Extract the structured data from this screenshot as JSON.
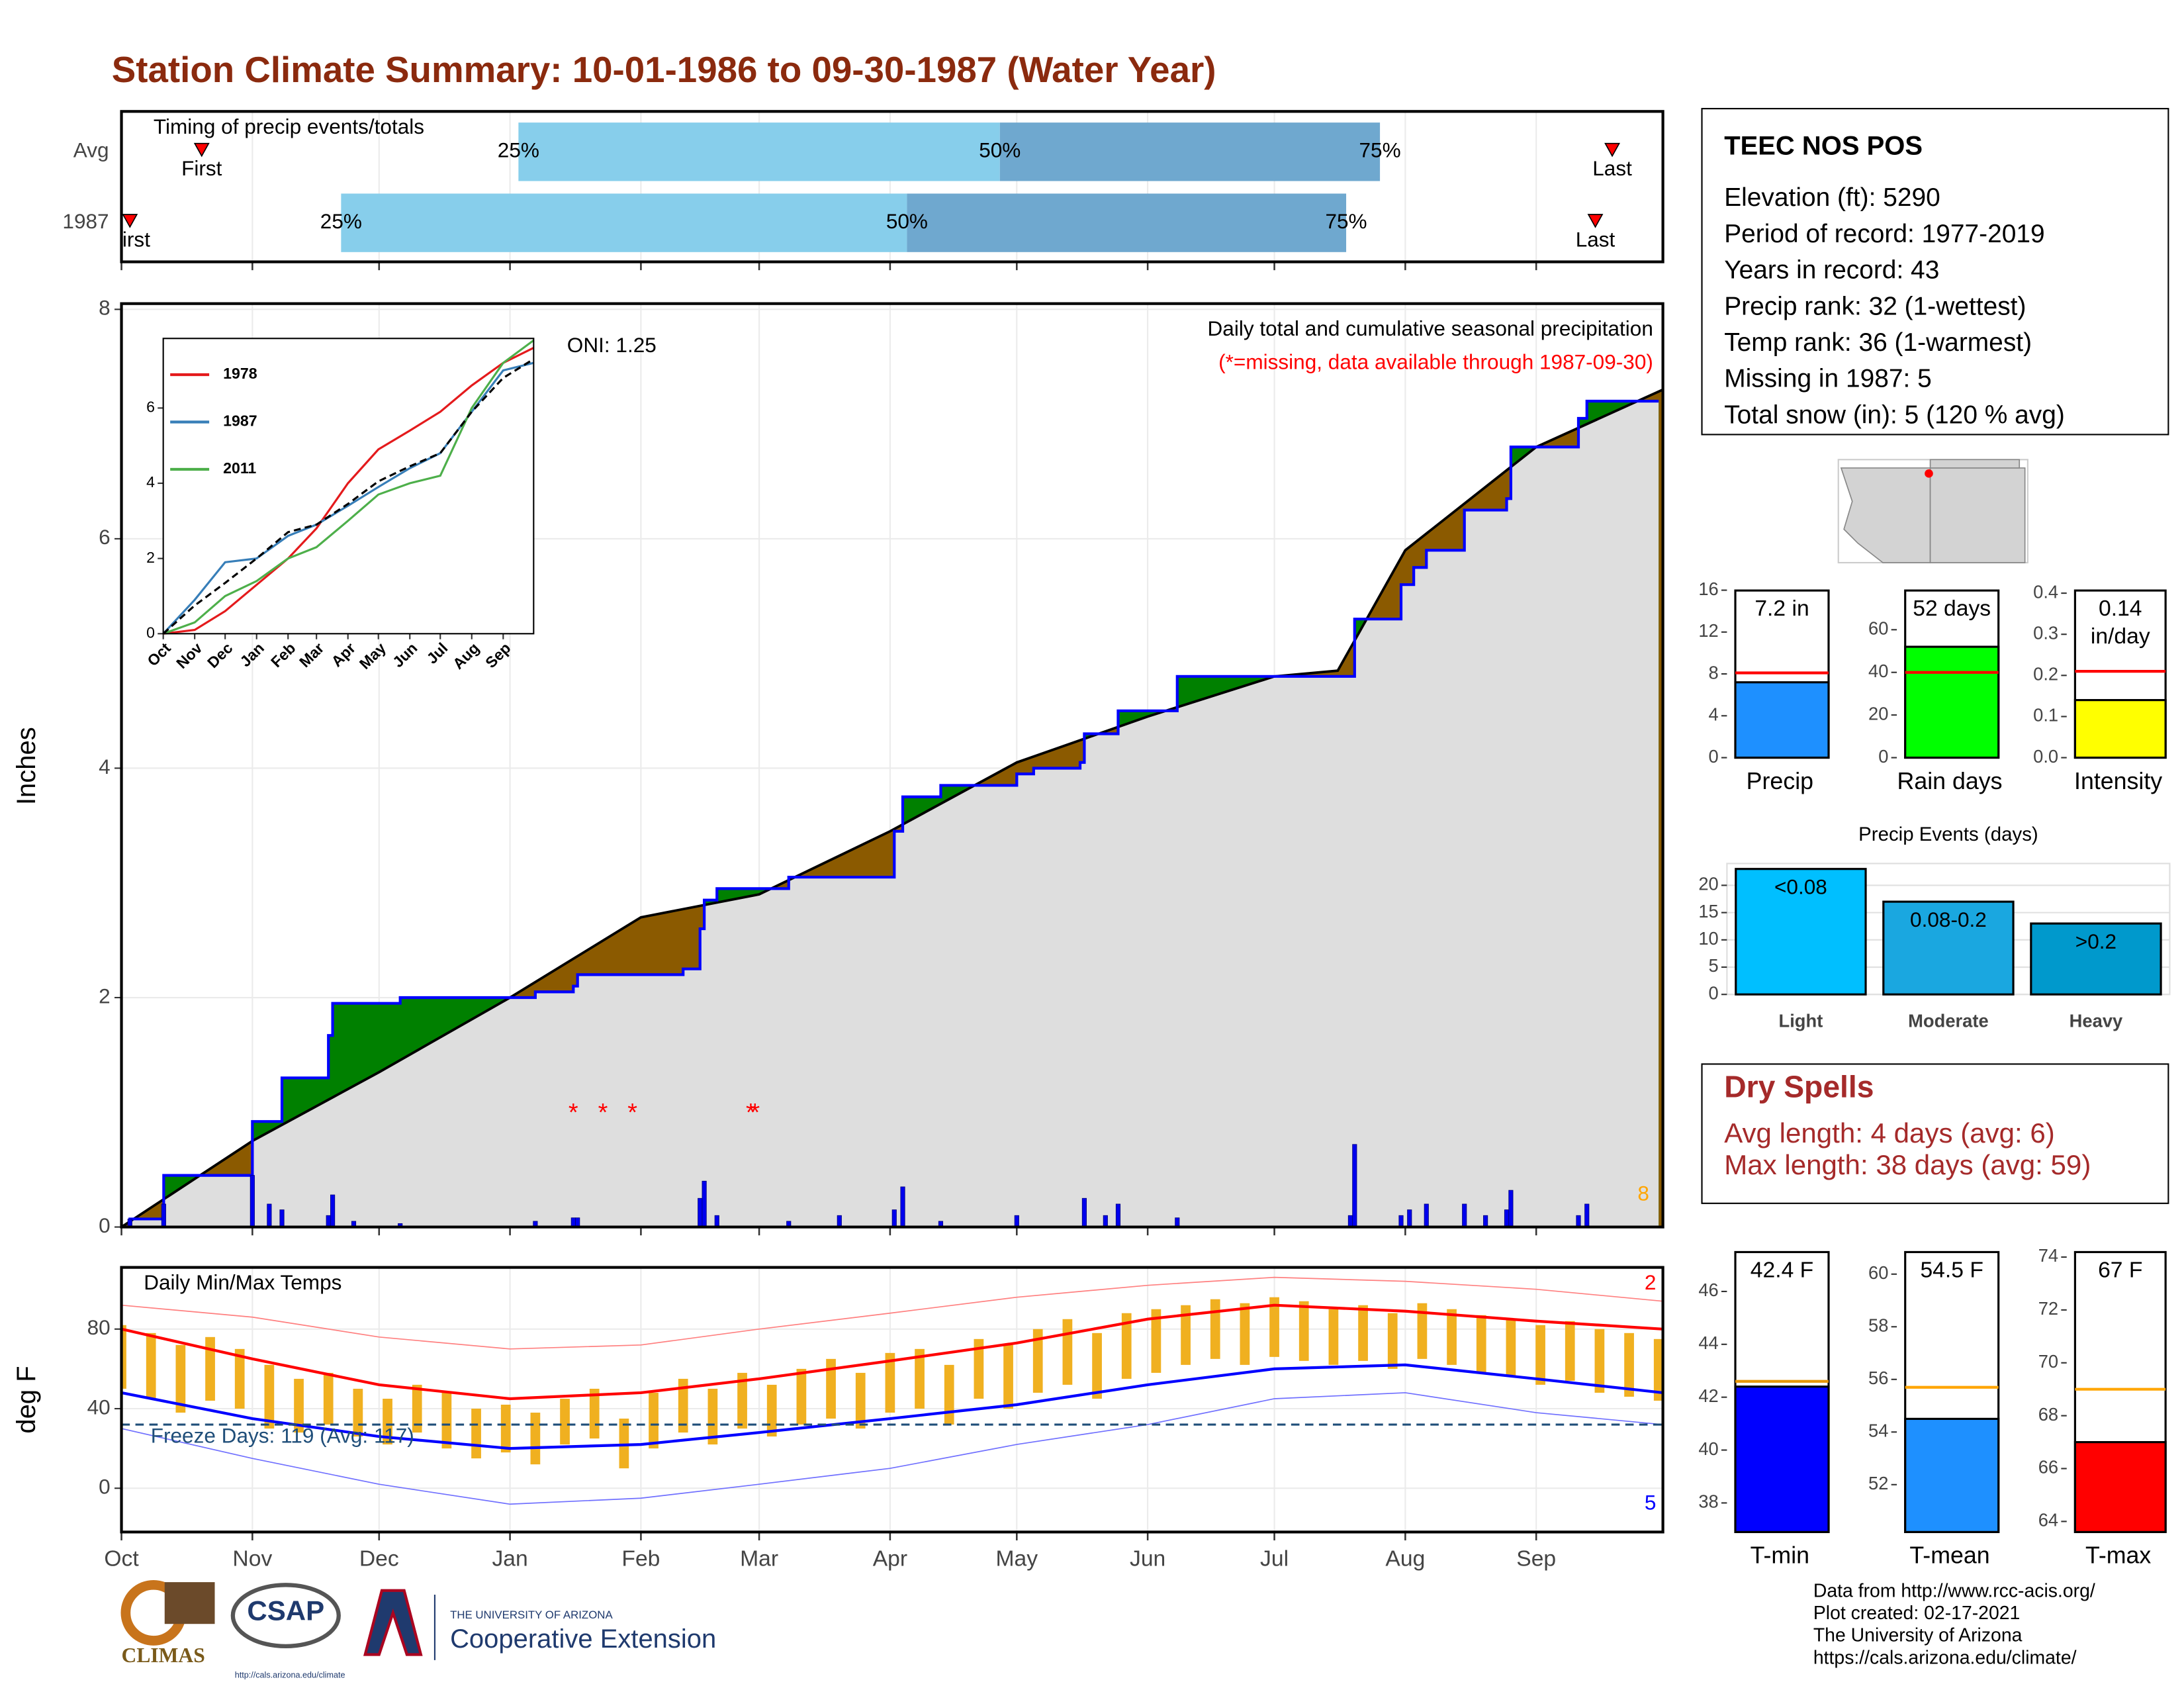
{
  "title": "Station Climate Summary: 10-01-1986 to 09-30-1987 (Water Year)",
  "station": {
    "name": "TEEC NOS POS",
    "lines": [
      "Elevation (ft): 5290",
      "Period of record: 1977-2019",
      "Years in record: 43",
      "Precip rank: 32 (1-wettest)",
      "Temp rank: 36 (1-warmest)",
      "Missing in 1987: 5",
      "Total snow (in): 5 (120 % avg)"
    ]
  },
  "dry_spells": {
    "title": "Dry Spells",
    "lines": [
      "Avg length: 4 days (avg: 6)",
      "Max length: 38 days (avg: 59)"
    ]
  },
  "footer": {
    "logos": [
      "CLIMAS",
      "CSAP",
      "http://cals.arizona.edu/climate"
    ],
    "university": "THE UNIVERSITY OF ARIZONA",
    "extension": "Cooperative Extension",
    "credits": [
      "Data from http://www.rcc-acis.org/",
      "Plot created: 02-17-2021",
      "The University of Arizona",
      "https://cals.arizona.edu/climate/"
    ]
  },
  "chart_data": [
    {
      "type": "timeline",
      "title": "Timing of precip events/totals",
      "marker_labels": [
        "First",
        "25%",
        "50%",
        "75%",
        "Last"
      ],
      "rows": [
        {
          "name": "Avg",
          "first": 19,
          "p25": 94,
          "p50": 208,
          "p75": 298,
          "last": 353
        },
        {
          "name": "1987",
          "first": 2,
          "p25": 52,
          "p50": 186,
          "p75": 290,
          "last": 349
        }
      ],
      "colors": [
        "#87ceeb",
        "#6fa8cf"
      ],
      "marker_color": "#ff0000"
    },
    {
      "type": "area",
      "ylabel": "Inches",
      "xlim": [
        0,
        365
      ],
      "xticks": [
        {
          "value": 0,
          "label": "Oct"
        },
        {
          "value": 31,
          "label": "Nov"
        },
        {
          "value": 61,
          "label": "Dec"
        },
        {
          "value": 92,
          "label": "Jan"
        },
        {
          "value": 123,
          "label": "Feb"
        },
        {
          "value": 151,
          "label": "Mar"
        },
        {
          "value": 182,
          "label": "Apr"
        },
        {
          "value": 212,
          "label": "May"
        },
        {
          "value": 243,
          "label": "Jun"
        },
        {
          "value": 273,
          "label": "Jul"
        },
        {
          "value": 304,
          "label": "Aug"
        },
        {
          "value": 335,
          "label": "Sep"
        }
      ],
      "ylim": [
        0,
        8.05
      ],
      "yticks": [
        0,
        2,
        4,
        6,
        8
      ],
      "grid": true,
      "annotations": {
        "oni": "ONI: 1.25",
        "description": "Daily total and cumulative seasonal precipitation",
        "missing_note": "(*=missing, data available through 1987-09-30)"
      },
      "marker_count": 8,
      "cumulative": {
        "x": [
          0,
          2,
          10,
          31,
          38,
          49,
          50,
          66,
          98,
          107,
          108,
          133,
          137,
          138,
          141,
          158,
          183,
          185,
          194,
          212,
          216,
          227,
          228,
          236,
          250,
          291,
          292,
          303,
          306,
          309,
          318,
          328,
          329,
          345,
          347,
          364
        ],
        "values": [
          0,
          0.07,
          0.45,
          0.92,
          1.3,
          1.67,
          1.95,
          2.0,
          2.05,
          2.1,
          2.2,
          2.25,
          2.6,
          2.85,
          2.95,
          3.05,
          3.45,
          3.75,
          3.85,
          3.95,
          4.0,
          4.05,
          4.3,
          4.5,
          4.8,
          4.8,
          5.3,
          5.6,
          5.75,
          5.9,
          6.25,
          6.35,
          6.8,
          7.05,
          7.2,
          7.2
        ],
        "color": "#0000ff"
      },
      "average": {
        "x": [
          0,
          31,
          61,
          92,
          123,
          151,
          182,
          212,
          243,
          273,
          288,
          304,
          335,
          365
        ],
        "values": [
          0,
          0.75,
          1.35,
          2.0,
          2.7,
          2.9,
          3.45,
          4.05,
          4.45,
          4.8,
          4.85,
          5.9,
          6.8,
          7.3
        ],
        "color": "#000000"
      },
      "daily": {
        "x": [
          2,
          10,
          31,
          35,
          38,
          49,
          50,
          55,
          66,
          98,
          107,
          108,
          137,
          138,
          141,
          158,
          170,
          183,
          185,
          194,
          212,
          228,
          233,
          236,
          250,
          291,
          292,
          303,
          305,
          309,
          318,
          323,
          328,
          329,
          345,
          347
        ],
        "values": [
          0.07,
          0.2,
          0.45,
          0.2,
          0.15,
          0.1,
          0.28,
          0.05,
          0.03,
          0.05,
          0.08,
          0.08,
          0.25,
          0.4,
          0.1,
          0.05,
          0.1,
          0.15,
          0.35,
          0.05,
          0.1,
          0.25,
          0.1,
          0.2,
          0.08,
          0.1,
          0.72,
          0.1,
          0.15,
          0.2,
          0.2,
          0.1,
          0.15,
          0.32,
          0.1,
          0.2
        ],
        "color": "#0000ee"
      },
      "missing": {
        "x": [
          107,
          114,
          121,
          149,
          150
        ],
        "symbol": "*",
        "color": "#ff0000"
      },
      "above_color": "#008000",
      "below_color": "#8b5a00",
      "base_color": "#dedede"
    },
    {
      "type": "line",
      "xlim": [
        0,
        365
      ],
      "xticks": [
        {
          "value": 0,
          "label": "Oct"
        },
        {
          "value": 31,
          "label": "Nov"
        },
        {
          "value": 61,
          "label": "Dec"
        },
        {
          "value": 92,
          "label": "Jan"
        },
        {
          "value": 123,
          "label": "Feb"
        },
        {
          "value": 151,
          "label": "Mar"
        },
        {
          "value": 182,
          "label": "Apr"
        },
        {
          "value": 212,
          "label": "May"
        },
        {
          "value": 243,
          "label": "Jun"
        },
        {
          "value": 273,
          "label": "Jul"
        },
        {
          "value": 304,
          "label": "Aug"
        },
        {
          "value": 335,
          "label": "Sep"
        }
      ],
      "ylim": [
        0,
        7.85
      ],
      "yticks": [
        0,
        2,
        4,
        6
      ],
      "x": [
        0,
        31,
        61,
        92,
        123,
        151,
        182,
        212,
        243,
        273,
        304,
        335,
        365
      ],
      "series": [
        {
          "name": "1978",
          "color": "#e41a1c",
          "values": [
            0,
            0.1,
            0.6,
            1.3,
            2.0,
            2.8,
            4.0,
            4.9,
            5.4,
            5.9,
            6.6,
            7.2,
            7.6
          ]
        },
        {
          "name": "1987",
          "color": "#377eb8",
          "values": [
            0,
            0.9,
            1.9,
            2.0,
            2.6,
            2.9,
            3.4,
            3.9,
            4.4,
            4.8,
            5.9,
            7.0,
            7.2
          ]
        },
        {
          "name": "2011",
          "color": "#4daf4a",
          "values": [
            0,
            0.3,
            1.0,
            1.4,
            2.0,
            2.3,
            3.0,
            3.7,
            4.0,
            4.2,
            6.0,
            7.2,
            7.8
          ]
        }
      ],
      "average": {
        "values": [
          0,
          0.75,
          1.35,
          2.0,
          2.7,
          2.9,
          3.45,
          4.05,
          4.45,
          4.8,
          5.9,
          6.8,
          7.3
        ],
        "color": "#000000"
      }
    },
    {
      "type": "range",
      "title": "Daily Min/Max Temps",
      "ylabel": "deg F",
      "ylim": [
        -22,
        111
      ],
      "yticks": [
        0,
        40,
        80
      ],
      "freeze_line": 32,
      "freeze_label": "Freeze Days: 119 (Avg: 117)",
      "freeze_color": "#1f4e79",
      "high_count": 2,
      "low_count": 5,
      "daily": {
        "x": [
          0,
          7,
          14,
          21,
          28,
          35,
          42,
          49,
          56,
          63,
          70,
          77,
          84,
          91,
          98,
          105,
          112,
          119,
          126,
          133,
          140,
          147,
          154,
          161,
          168,
          175,
          182,
          189,
          196,
          203,
          210,
          217,
          224,
          231,
          238,
          245,
          252,
          259,
          266,
          273,
          280,
          287,
          294,
          301,
          308,
          315,
          322,
          329,
          336,
          343,
          350,
          357,
          364
        ],
        "max": [
          82,
          78,
          72,
          76,
          70,
          62,
          55,
          58,
          50,
          45,
          52,
          48,
          40,
          42,
          38,
          45,
          50,
          35,
          48,
          55,
          50,
          58,
          52,
          60,
          65,
          58,
          68,
          70,
          62,
          75,
          72,
          80,
          85,
          78,
          88,
          90,
          92,
          95,
          93,
          96,
          94,
          90,
          92,
          88,
          93,
          90,
          87,
          85,
          82,
          84,
          80,
          78,
          75
        ],
        "min": [
          50,
          45,
          38,
          44,
          40,
          30,
          28,
          32,
          26,
          22,
          28,
          20,
          15,
          18,
          12,
          22,
          25,
          10,
          20,
          28,
          22,
          30,
          26,
          32,
          35,
          30,
          38,
          40,
          32,
          45,
          40,
          48,
          52,
          45,
          55,
          58,
          62,
          65,
          62,
          66,
          64,
          62,
          64,
          60,
          65,
          62,
          58,
          56,
          52,
          54,
          48,
          46,
          44
        ],
        "color": "#f0b020"
      },
      "normal_x": [
        0,
        31,
        61,
        92,
        123,
        151,
        182,
        212,
        243,
        273,
        304,
        335,
        365
      ],
      "avg_max": {
        "values": [
          80,
          65,
          52,
          45,
          48,
          55,
          64,
          73,
          85,
          92,
          89,
          84,
          80
        ],
        "color": "#ff0000"
      },
      "avg_min": {
        "values": [
          48,
          35,
          26,
          20,
          22,
          28,
          35,
          42,
          52,
          60,
          62,
          55,
          48
        ],
        "color": "#0000ff"
      },
      "record_max": {
        "values": [
          92,
          86,
          76,
          70,
          72,
          80,
          88,
          96,
          102,
          106,
          104,
          100,
          94
        ],
        "color": "#ff8080"
      },
      "record_min": {
        "values": [
          30,
          15,
          2,
          -8,
          -5,
          2,
          10,
          22,
          32,
          45,
          48,
          38,
          32
        ],
        "color": "#7070ff"
      }
    },
    {
      "type": "bar",
      "categories": [
        "Precip"
      ],
      "values": [
        7.2
      ],
      "value_labels": [
        "7.2 in"
      ],
      "average": 8.1,
      "average_color": "#ff0000",
      "color": "#1e90ff",
      "ylim": [
        0,
        16.5
      ],
      "yticks": [
        0,
        4,
        8,
        12,
        16
      ]
    },
    {
      "type": "bar",
      "categories": [
        "Rain days"
      ],
      "values": [
        52
      ],
      "value_labels": [
        "52 days"
      ],
      "average": 40,
      "average_color": "#ff0000",
      "color": "#00ff00",
      "ylim": [
        0,
        81
      ],
      "yticks": [
        0,
        20,
        40,
        60
      ]
    },
    {
      "type": "bar",
      "categories": [
        "Intensity"
      ],
      "values": [
        0.14
      ],
      "value_labels": [
        "0.14\nin/day"
      ],
      "average": 0.21,
      "average_color": "#ff0000",
      "color": "#ffff00",
      "ylim": [
        0,
        0.42
      ],
      "yticks": [
        {
          "value": 0,
          "label": "0.0"
        },
        0.1,
        0.2,
        0.3,
        0.4
      ]
    },
    {
      "type": "bar",
      "title": "Precip Events (days)",
      "categories": [
        "Light",
        "Moderate",
        "Heavy"
      ],
      "values": [
        23,
        17,
        13
      ],
      "bin_labels": [
        "<0.08",
        "0.08-0.2",
        ">0.2"
      ],
      "colors": [
        "#00bfff",
        "#1aa7e0",
        "#0099cc"
      ],
      "ylim": [
        0,
        24
      ],
      "yticks": [
        0,
        5,
        10,
        15,
        20
      ],
      "grid": true
    },
    {
      "type": "bar",
      "categories": [
        "T-min"
      ],
      "values": [
        42.4
      ],
      "value_labels": [
        "42.4 F"
      ],
      "average": 42.6,
      "average_color": "#e69500",
      "color": "#0000ff",
      "ylim": [
        36.9,
        47.7
      ],
      "yticks": [
        38,
        40,
        42,
        44,
        46
      ]
    },
    {
      "type": "bar",
      "categories": [
        "T-mean"
      ],
      "values": [
        54.5
      ],
      "value_labels": [
        "54.5 F"
      ],
      "average": 55.7,
      "average_color": "#ffa500",
      "color": "#1e90ff",
      "ylim": [
        50.2,
        61.05
      ],
      "yticks": [
        52,
        54,
        56,
        58,
        60
      ]
    },
    {
      "type": "bar",
      "categories": [
        "T-max"
      ],
      "values": [
        67
      ],
      "value_labels": [
        "67 F"
      ],
      "average": 69,
      "average_color": "#ffa500",
      "color": "#ff0000",
      "ylim": [
        63.6,
        74.4
      ],
      "yticks": [
        64,
        66,
        68,
        70,
        72,
        74
      ]
    }
  ]
}
